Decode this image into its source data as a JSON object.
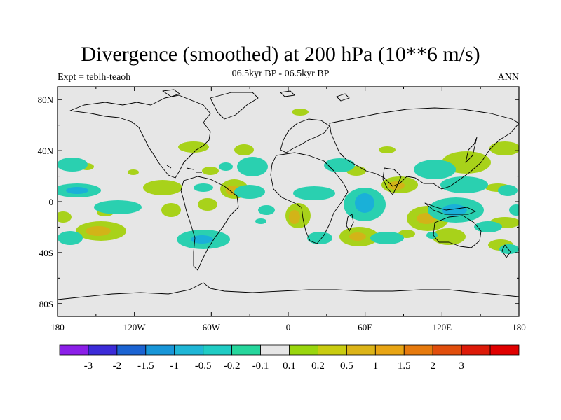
{
  "title": "Divergence (smoothed) at 200 hPa (10**6 m/s)",
  "left_string": "Expt = teblh-teaoh",
  "center_string": "06.5kyr BP - 06.5kyr BP",
  "right_string": "ANN",
  "y_axis": {
    "labels": [
      "80N",
      "40N",
      "0",
      "40S",
      "80S"
    ],
    "values": [
      80,
      40,
      0,
      -40,
      -80
    ]
  },
  "x_axis": {
    "labels": [
      "180",
      "120W",
      "60W",
      "0",
      "60E",
      "120E",
      "180"
    ],
    "values": [
      -180,
      -120,
      -60,
      0,
      60,
      120,
      180
    ]
  },
  "colorbar": {
    "colors": [
      "#8b1fe8",
      "#3c2bd8",
      "#1b63d2",
      "#1896d8",
      "#1fb6d6",
      "#20ccc4",
      "#26d69c",
      "#e6e6e6",
      "#99d60e",
      "#c9cc10",
      "#dcb418",
      "#e8a514",
      "#e67a0e",
      "#e14e0c",
      "#dd1a08",
      "#e00000"
    ],
    "labels": [
      "-3",
      "-2",
      "-1.5",
      "-1",
      "-0.5",
      "-0.2",
      "-0.1",
      "0.1",
      "0.2",
      "0.5",
      "1",
      "1.5",
      "2",
      "3"
    ]
  },
  "colors": {
    "land_fill": "#e6e6e6",
    "positive": "#a8d21a",
    "positive_strong": "#d2b418",
    "negative": "#2ad0b0",
    "negative_strong": "#1ab0d8"
  }
}
